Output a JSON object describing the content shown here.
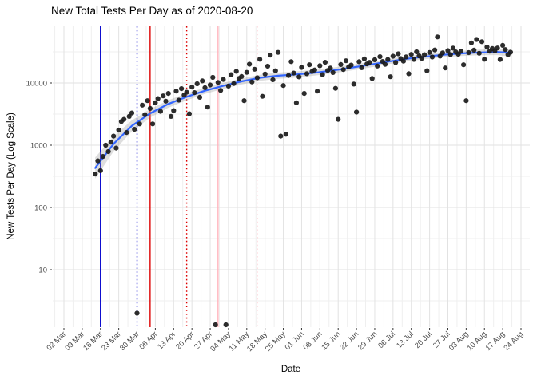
{
  "title": "New Total Tests Per Day as of 2020-08-20",
  "chart_data": {
    "type": "scatter",
    "title": "New Total Tests Per Day as of 2020-08-20",
    "xlabel": "Date",
    "ylabel": "New Tests Per Day (Log Scale)",
    "y_scale": "log10",
    "ylim": [
      1,
      80000
    ],
    "grid": "on",
    "x_unit": "days since 2020-03-02",
    "x_tick_days": [
      0,
      7,
      14,
      21,
      28,
      35,
      42,
      49,
      56,
      63,
      70,
      77,
      84,
      91,
      98,
      105,
      112,
      119,
      126,
      133,
      140,
      147,
      154,
      161,
      168,
      175
    ],
    "x_tick_labels": [
      "02 Mar",
      "09 Mar",
      "16 Mar",
      "23 Mar",
      "30 Mar",
      "06 Apr",
      "13 Apr",
      "20 Apr",
      "27 Apr",
      "04 May",
      "11 May",
      "18 May",
      "25 May",
      "01 Jun",
      "08 Jun",
      "15 Jun",
      "22 Jun",
      "29 Jun",
      "06 Jul",
      "13 Jul",
      "20 Jul",
      "27 Jul",
      "03 Aug",
      "10 Aug",
      "17 Aug",
      "24 Aug"
    ],
    "y_ticks": [
      10,
      100,
      1000,
      10000
    ],
    "y_tick_labels": [
      "10",
      "100",
      "1000",
      "10000"
    ],
    "point_color": "#1a1a1a",
    "smooth": {
      "name": "loess-smooth",
      "line_color": "#3366FF",
      "band_color": "#999999",
      "values": [
        [
          12,
          430,
          1.48
        ],
        [
          19,
          1050,
          1.32
        ],
        [
          26,
          2050,
          1.23
        ],
        [
          33,
          3250,
          1.17
        ],
        [
          40,
          4600,
          1.15
        ],
        [
          47,
          6000,
          1.14
        ],
        [
          54,
          7500,
          1.12
        ],
        [
          61,
          9000,
          1.12
        ],
        [
          68,
          10600,
          1.12
        ],
        [
          75,
          12100,
          1.12
        ],
        [
          82,
          13100,
          1.12
        ],
        [
          89,
          13700,
          1.12
        ],
        [
          96,
          14600,
          1.11
        ],
        [
          103,
          15900,
          1.11
        ],
        [
          110,
          17600,
          1.11
        ],
        [
          117,
          19600,
          1.11
        ],
        [
          124,
          22000,
          1.1
        ],
        [
          131,
          24400,
          1.1
        ],
        [
          138,
          26400,
          1.1
        ],
        [
          145,
          28300,
          1.1
        ],
        [
          152,
          29800,
          1.1
        ],
        [
          159,
          30900,
          1.11
        ],
        [
          166,
          31400,
          1.12
        ],
        [
          171,
          30600,
          1.16
        ]
      ]
    },
    "vlines": [
      {
        "date": "2020-03-16",
        "day": 14,
        "color": "#0000CD",
        "style": "solid"
      },
      {
        "date": "2020-03-30",
        "day": 28,
        "color": "#0000CD",
        "style": "dotted"
      },
      {
        "date": "2020-04-04",
        "day": 33,
        "color": "#DD0000",
        "style": "solid"
      },
      {
        "date": "2020-04-18",
        "day": 47,
        "color": "#DD0000",
        "style": "dotted"
      },
      {
        "date": "2020-04-30",
        "day": 59,
        "color": "#FFB3BC",
        "style": "solid"
      },
      {
        "date": "2020-05-15",
        "day": 74,
        "color": "#FFC9D0",
        "style": "dotted"
      }
    ],
    "points": [
      [
        12,
        345
      ],
      [
        13,
        560
      ],
      [
        14,
        390
      ],
      [
        15,
        660
      ],
      [
        16,
        1000
      ],
      [
        17,
        790
      ],
      [
        18,
        1120
      ],
      [
        19,
        1400
      ],
      [
        20,
        900
      ],
      [
        21,
        1750
      ],
      [
        22,
        2400
      ],
      [
        23,
        2600
      ],
      [
        24,
        1600
      ],
      [
        25,
        2900
      ],
      [
        26,
        3300
      ],
      [
        27,
        1800
      ],
      [
        28,
        2
      ],
      [
        29,
        2200
      ],
      [
        30,
        4400
      ],
      [
        31,
        3100
      ],
      [
        32,
        5200
      ],
      [
        33,
        3900
      ],
      [
        34,
        2200
      ],
      [
        35,
        4800
      ],
      [
        36,
        5600
      ],
      [
        37,
        3500
      ],
      [
        38,
        6200
      ],
      [
        39,
        5100
      ],
      [
        40,
        6800
      ],
      [
        41,
        2900
      ],
      [
        42,
        3600
      ],
      [
        43,
        7400
      ],
      [
        44,
        5300
      ],
      [
        45,
        8100
      ],
      [
        46,
        6400
      ],
      [
        47,
        7100
      ],
      [
        48,
        3200
      ],
      [
        49,
        8600
      ],
      [
        50,
        7000
      ],
      [
        51,
        9700
      ],
      [
        52,
        5900
      ],
      [
        53,
        10800
      ],
      [
        54,
        8400
      ],
      [
        55,
        4100
      ],
      [
        56,
        9300
      ],
      [
        57,
        12300
      ],
      [
        58,
        1
      ],
      [
        59,
        10200
      ],
      [
        60,
        7600
      ],
      [
        61,
        11400
      ],
      [
        62,
        1
      ],
      [
        63,
        8900
      ],
      [
        64,
        13600
      ],
      [
        65,
        9800
      ],
      [
        66,
        15400
      ],
      [
        67,
        11800
      ],
      [
        68,
        12700
      ],
      [
        69,
        5200
      ],
      [
        70,
        14800
      ],
      [
        71,
        20000
      ],
      [
        72,
        10400
      ],
      [
        73,
        16600
      ],
      [
        74,
        12100
      ],
      [
        75,
        24000
      ],
      [
        76,
        6100
      ],
      [
        77,
        13900
      ],
      [
        78,
        18600
      ],
      [
        79,
        28000
      ],
      [
        80,
        11300
      ],
      [
        81,
        15700
      ],
      [
        82,
        31000
      ],
      [
        83,
        1400
      ],
      [
        84,
        9100
      ],
      [
        85,
        1500
      ],
      [
        86,
        13200
      ],
      [
        87,
        22000
      ],
      [
        88,
        14400
      ],
      [
        89,
        4800
      ],
      [
        90,
        12500
      ],
      [
        91,
        17800
      ],
      [
        92,
        6800
      ],
      [
        93,
        14100
      ],
      [
        94,
        19600
      ],
      [
        95,
        15300
      ],
      [
        96,
        16200
      ],
      [
        97,
        7400
      ],
      [
        98,
        18900
      ],
      [
        99,
        13600
      ],
      [
        100,
        21500
      ],
      [
        101,
        15900
      ],
      [
        102,
        17300
      ],
      [
        103,
        14700
      ],
      [
        104,
        8200
      ],
      [
        105,
        2600
      ],
      [
        106,
        19800
      ],
      [
        107,
        16400
      ],
      [
        108,
        22700
      ],
      [
        109,
        18100
      ],
      [
        110,
        19400
      ],
      [
        111,
        9600
      ],
      [
        112,
        3400
      ],
      [
        113,
        21900
      ],
      [
        114,
        17600
      ],
      [
        115,
        24300
      ],
      [
        116,
        20200
      ],
      [
        117,
        21400
      ],
      [
        118,
        11800
      ],
      [
        119,
        23600
      ],
      [
        120,
        18700
      ],
      [
        121,
        26400
      ],
      [
        122,
        22100
      ],
      [
        123,
        19900
      ],
      [
        124,
        23800
      ],
      [
        125,
        12600
      ],
      [
        126,
        26900
      ],
      [
        127,
        21300
      ],
      [
        128,
        29400
      ],
      [
        129,
        24600
      ],
      [
        130,
        22400
      ],
      [
        131,
        26200
      ],
      [
        132,
        14100
      ],
      [
        133,
        28800
      ],
      [
        134,
        23900
      ],
      [
        135,
        31600
      ],
      [
        136,
        27200
      ],
      [
        137,
        24800
      ],
      [
        138,
        28400
      ],
      [
        139,
        15700
      ],
      [
        140,
        30900
      ],
      [
        141,
        26100
      ],
      [
        142,
        33800
      ],
      [
        143,
        55000
      ],
      [
        144,
        27000
      ],
      [
        145,
        30400
      ],
      [
        146,
        17400
      ],
      [
        147,
        33100
      ],
      [
        148,
        28600
      ],
      [
        149,
        36200
      ],
      [
        150,
        31500
      ],
      [
        151,
        28900
      ],
      [
        152,
        32400
      ],
      [
        153,
        19600
      ],
      [
        154,
        5200
      ],
      [
        155,
        30700
      ],
      [
        156,
        44000
      ],
      [
        157,
        33600
      ],
      [
        158,
        50000
      ],
      [
        159,
        30000
      ],
      [
        160,
        46000
      ],
      [
        161,
        24000
      ],
      [
        162,
        37800
      ],
      [
        163,
        32400
      ],
      [
        164,
        35700
      ],
      [
        165,
        32600
      ],
      [
        166,
        36400
      ],
      [
        167,
        23800
      ],
      [
        168,
        40200
      ],
      [
        169,
        34300
      ],
      [
        170,
        28500
      ],
      [
        171,
        31200
      ]
    ],
    "colors": {
      "grid_major": "#e2e2e2",
      "grid_minor": "#efefef",
      "tick_label": "#4d4d4d",
      "tick_mark": "#333333"
    }
  }
}
